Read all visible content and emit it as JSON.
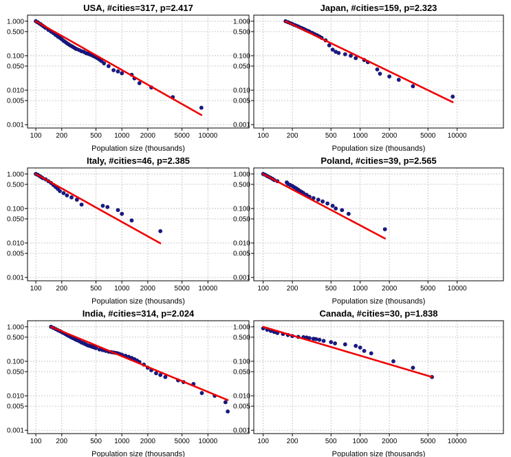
{
  "colors": {
    "points": "#1a1a8c",
    "fit": "#ee0000",
    "grid": "#bbbbbb",
    "axis": "#000000"
  },
  "chart_data": [
    {
      "type": "scatter",
      "title": "USA, #cities=317, p=2.417",
      "xlabel": "Population size (thousands)",
      "ylabel": "",
      "xscale": "log",
      "yscale": "log",
      "xlim": [
        80,
        30000
      ],
      "ylim": [
        0.0008,
        1.5
      ],
      "grid": true,
      "x_ticks": [
        "100",
        "200",
        "500",
        "1000",
        "2000",
        "5000",
        "10000"
      ],
      "y_ticks": [
        "0.001",
        "0.005",
        "0.010",
        "0.050",
        "0.100",
        "0.500",
        "1.000"
      ],
      "fit": {
        "x": [
          100,
          8400
        ],
        "y": [
          1.0,
          0.0019
        ]
      },
      "points": {
        "x": [
          100,
          105,
          110,
          115,
          120,
          125,
          130,
          140,
          150,
          160,
          170,
          180,
          190,
          200,
          210,
          220,
          230,
          240,
          250,
          260,
          270,
          280,
          290,
          300,
          320,
          340,
          360,
          380,
          400,
          420,
          440,
          460,
          480,
          500,
          520,
          540,
          560,
          580,
          620,
          700,
          800,
          900,
          1000,
          1300,
          1400,
          1600,
          2200,
          3900,
          8400
        ],
        "y": [
          1.0,
          0.93,
          0.86,
          0.8,
          0.74,
          0.69,
          0.64,
          0.56,
          0.5,
          0.45,
          0.4,
          0.36,
          0.33,
          0.3,
          0.27,
          0.25,
          0.23,
          0.215,
          0.2,
          0.19,
          0.18,
          0.17,
          0.16,
          0.155,
          0.145,
          0.135,
          0.13,
          0.12,
          0.115,
          0.11,
          0.105,
          0.1,
          0.095,
          0.09,
          0.085,
          0.08,
          0.075,
          0.07,
          0.06,
          0.05,
          0.038,
          0.035,
          0.031,
          0.028,
          0.022,
          0.016,
          0.012,
          0.0063,
          0.0031
        ]
      }
    },
    {
      "type": "scatter",
      "title": "Japan, #cities=159, p=2.323",
      "xlabel": "Population size (thousands)",
      "ylabel": "",
      "xscale": "log",
      "yscale": "log",
      "xlim": [
        80,
        30000
      ],
      "ylim": [
        0.0008,
        1.5
      ],
      "grid": true,
      "x_ticks": [
        "100",
        "200",
        "500",
        "1000",
        "2000",
        "5000",
        "10000"
      ],
      "y_ticks": [
        "0.001",
        "0.005",
        "0.010",
        "0.050",
        "0.100",
        "0.500",
        "1.000"
      ],
      "fit": {
        "x": [
          170,
          9000
        ],
        "y": [
          1.0,
          0.0045
        ]
      },
      "points": {
        "x": [
          170,
          180,
          190,
          200,
          210,
          220,
          230,
          240,
          250,
          260,
          270,
          280,
          290,
          300,
          320,
          340,
          360,
          380,
          400,
          440,
          480,
          520,
          560,
          600,
          700,
          800,
          900,
          1100,
          1200,
          1500,
          1600,
          2000,
          2500,
          3500,
          9000
        ],
        "y": [
          1.0,
          0.94,
          0.88,
          0.83,
          0.78,
          0.74,
          0.7,
          0.66,
          0.63,
          0.6,
          0.57,
          0.54,
          0.52,
          0.5,
          0.46,
          0.42,
          0.39,
          0.36,
          0.33,
          0.28,
          0.2,
          0.15,
          0.13,
          0.12,
          0.11,
          0.1,
          0.085,
          0.075,
          0.065,
          0.04,
          0.03,
          0.025,
          0.02,
          0.013,
          0.0065
        ]
      }
    },
    {
      "type": "scatter",
      "title": "Italy, #cities=46, p=2.385",
      "xlabel": "Population size (thousands)",
      "ylabel": "",
      "xscale": "log",
      "yscale": "log",
      "xlim": [
        80,
        30000
      ],
      "ylim": [
        0.0008,
        1.5
      ],
      "grid": true,
      "x_ticks": [
        "100",
        "200",
        "500",
        "1000",
        "2000",
        "5000",
        "10000"
      ],
      "y_ticks": [
        "0.001",
        "0.005",
        "0.010",
        "0.050",
        "0.100",
        "0.500",
        "1.000"
      ],
      "fit": {
        "x": [
          100,
          2800
        ],
        "y": [
          1.0,
          0.0098
        ]
      },
      "points": {
        "x": [
          100,
          105,
          110,
          115,
          120,
          130,
          140,
          150,
          160,
          170,
          180,
          190,
          210,
          230,
          260,
          300,
          340,
          600,
          680,
          900,
          1000,
          1300,
          2800
        ],
        "y": [
          1.0,
          0.95,
          0.88,
          0.82,
          0.76,
          0.7,
          0.62,
          0.55,
          0.48,
          0.42,
          0.37,
          0.32,
          0.28,
          0.24,
          0.21,
          0.18,
          0.13,
          0.12,
          0.11,
          0.09,
          0.07,
          0.045,
          0.022
        ]
      }
    },
    {
      "type": "scatter",
      "title": "Poland, #cities=39, p=2.565",
      "xlabel": "Population size (thousands)",
      "ylabel": "",
      "xscale": "log",
      "yscale": "log",
      "xlim": [
        80,
        30000
      ],
      "ylim": [
        0.0008,
        1.5
      ],
      "grid": true,
      "x_ticks": [
        "100",
        "200",
        "500",
        "1000",
        "2000",
        "5000",
        "10000"
      ],
      "y_ticks": [
        "0.001",
        "0.005",
        "0.010",
        "0.050",
        "0.100",
        "0.500",
        "1.000"
      ],
      "fit": {
        "x": [
          100,
          1800
        ],
        "y": [
          1.0,
          0.0135
        ]
      },
      "points": {
        "x": [
          100,
          105,
          110,
          115,
          120,
          125,
          130,
          140,
          175,
          180,
          190,
          200,
          210,
          220,
          230,
          240,
          250,
          260,
          280,
          300,
          330,
          370,
          410,
          460,
          520,
          560,
          650,
          760,
          1800
        ],
        "y": [
          1.0,
          0.95,
          0.87,
          0.82,
          0.77,
          0.72,
          0.67,
          0.62,
          0.57,
          0.52,
          0.48,
          0.45,
          0.41,
          0.38,
          0.35,
          0.32,
          0.3,
          0.28,
          0.25,
          0.22,
          0.2,
          0.18,
          0.16,
          0.14,
          0.12,
          0.1,
          0.09,
          0.07,
          0.025
        ]
      }
    },
    {
      "type": "scatter",
      "title": "India, #cities=314, p=2.024",
      "xlabel": "Population size (thousands)",
      "ylabel": "",
      "xscale": "log",
      "yscale": "log",
      "xlim": [
        80,
        30000
      ],
      "ylim": [
        0.0008,
        1.5
      ],
      "grid": true,
      "x_ticks": [
        "100",
        "200",
        "500",
        "1000",
        "2000",
        "5000",
        "10000"
      ],
      "y_ticks": [
        "0.001",
        "0.005",
        "0.010",
        "0.050",
        "0.100",
        "0.500",
        "1.000"
      ],
      "fit": {
        "x": [
          150,
          17000
        ],
        "y": [
          1.0,
          0.0075
        ]
      },
      "points": {
        "x": [
          150,
          160,
          170,
          180,
          190,
          200,
          210,
          220,
          230,
          240,
          250,
          260,
          270,
          280,
          290,
          300,
          320,
          340,
          360,
          380,
          400,
          420,
          440,
          460,
          480,
          500,
          550,
          600,
          650,
          700,
          750,
          800,
          850,
          900,
          950,
          1000,
          1100,
          1200,
          1300,
          1400,
          1500,
          1600,
          1800,
          2000,
          2200,
          2500,
          2800,
          3200,
          4500,
          5200,
          6800,
          8500,
          12000,
          16000,
          17000
        ],
        "y": [
          1.0,
          0.93,
          0.86,
          0.8,
          0.75,
          0.7,
          0.66,
          0.62,
          0.58,
          0.55,
          0.52,
          0.49,
          0.47,
          0.45,
          0.43,
          0.41,
          0.38,
          0.35,
          0.33,
          0.31,
          0.29,
          0.28,
          0.27,
          0.26,
          0.25,
          0.24,
          0.22,
          0.21,
          0.2,
          0.19,
          0.185,
          0.18,
          0.175,
          0.17,
          0.16,
          0.155,
          0.145,
          0.135,
          0.125,
          0.115,
          0.105,
          0.095,
          0.08,
          0.065,
          0.055,
          0.045,
          0.04,
          0.035,
          0.028,
          0.025,
          0.022,
          0.012,
          0.01,
          0.0065,
          0.0035
        ]
      }
    },
    {
      "type": "scatter",
      "title": "Canada, #cities=30, p=1.838",
      "xlabel": "Population size (thousands)",
      "ylabel": "",
      "xscale": "log",
      "yscale": "log",
      "xlim": [
        80,
        30000
      ],
      "ylim": [
        0.0008,
        1.5
      ],
      "grid": true,
      "x_ticks": [
        "100",
        "200",
        "500",
        "1000",
        "2000",
        "5000",
        "10000"
      ],
      "y_ticks": [
        "0.001",
        "0.005",
        "0.010",
        "0.050",
        "0.100",
        "0.500",
        "1.000"
      ],
      "fit": {
        "x": [
          100,
          5500
        ],
        "y": [
          1.0,
          0.035
        ]
      },
      "points": {
        "x": [
          100,
          110,
          120,
          130,
          140,
          160,
          180,
          200,
          230,
          260,
          280,
          300,
          330,
          350,
          380,
          420,
          500,
          550,
          700,
          900,
          1000,
          1100,
          1300,
          2200,
          3500,
          5500
        ],
        "y": [
          0.9,
          0.82,
          0.76,
          0.71,
          0.66,
          0.62,
          0.58,
          0.54,
          0.51,
          0.5,
          0.49,
          0.47,
          0.45,
          0.44,
          0.42,
          0.39,
          0.36,
          0.33,
          0.31,
          0.28,
          0.25,
          0.2,
          0.17,
          0.1,
          0.065,
          0.035
        ]
      }
    }
  ]
}
